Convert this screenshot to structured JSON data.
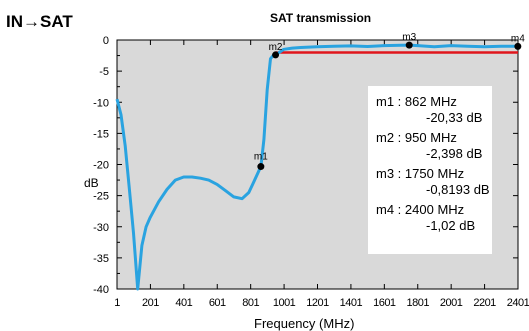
{
  "header": {
    "top_text": "",
    "left_text": "IN→SAT"
  },
  "chart_data": {
    "type": "line",
    "title": "SAT transmission",
    "xlabel": "Frequency (MHz)",
    "ylabel": "dB",
    "xlim": [
      1,
      2401
    ],
    "ylim": [
      -40,
      0
    ],
    "x_ticks": [
      "1",
      "201",
      "401",
      "601",
      "801",
      "1001",
      "1201",
      "1401",
      "1601",
      "1801",
      "2001",
      "2201",
      "2401"
    ],
    "y_ticks": [
      "0",
      "-5",
      "-10",
      "-15",
      "-20",
      "-25",
      "-30",
      "-35",
      "-40"
    ],
    "background": "#d9d9d9",
    "series": [
      {
        "color": "#2aa3e0",
        "x": [
          1,
          25,
          50,
          75,
          100,
          125,
          150,
          175,
          200,
          250,
          300,
          350,
          400,
          450,
          500,
          550,
          600,
          650,
          700,
          750,
          790,
          820,
          850,
          862,
          880,
          900,
          920,
          935,
          950,
          1000,
          1050,
          1100,
          1200,
          1300,
          1400,
          1500,
          1600,
          1700,
          1750,
          1800,
          1900,
          2000,
          2100,
          2200,
          2300,
          2400
        ],
        "y": [
          -9.5,
          -12,
          -17,
          -24,
          -31,
          -40,
          -33,
          -30,
          -28.5,
          -26,
          -24,
          -22.5,
          -22,
          -22,
          -22.2,
          -22.5,
          -23.2,
          -24.2,
          -25.2,
          -25.5,
          -24.5,
          -22.8,
          -21,
          -20.33,
          -16,
          -8,
          -3,
          -2.5,
          -2.398,
          -1.5,
          -1.3,
          -1.2,
          -1.1,
          -1.0,
          -0.95,
          -1.05,
          -0.9,
          -0.85,
          -0.8193,
          -0.9,
          -1.1,
          -0.9,
          -1.0,
          -1.1,
          -1.0,
          -1.02
        ]
      },
      {
        "color": "#e0161c",
        "x": [
          950,
          2401
        ],
        "y": [
          -2,
          -2
        ]
      }
    ],
    "markers": [
      {
        "id": "m1",
        "freq": "862 MHz",
        "value": "-20,33 dB",
        "x": 862,
        "y": -20.33
      },
      {
        "id": "m2",
        "freq": "950 MHz",
        "value": "-2,398 dB",
        "x": 950,
        "y": -2.398
      },
      {
        "id": "m3",
        "freq": "1750 MHz",
        "value": "-0,8193 dB",
        "x": 1750,
        "y": -0.8193
      },
      {
        "id": "m4",
        "freq": "2400 MHz",
        "value": "-1,02 dB",
        "x": 2400,
        "y": -1.02
      }
    ]
  }
}
